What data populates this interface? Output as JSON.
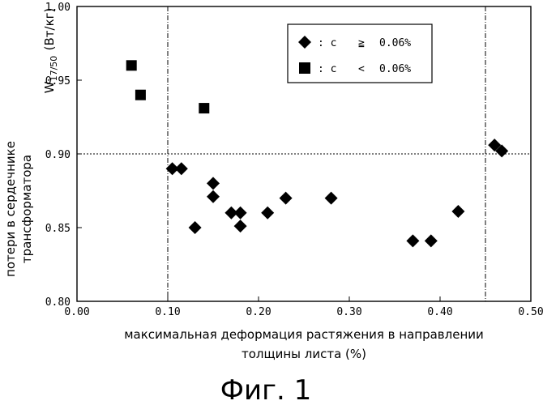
{
  "chart_data": {
    "type": "scatter",
    "xlabel_line1": "максимальная деформация растяжения в направлении",
    "xlabel_line2": "толщины листа (%)",
    "ylabel_line1": "потери в сердечнике",
    "ylabel_line2": "трансформатора",
    "ylabel_symbol": "W",
    "ylabel_subscript": "17/50",
    "ylabel_unit": "(Вт/кг)",
    "xlim": [
      0.0,
      0.5
    ],
    "ylim": [
      0.8,
      1.0
    ],
    "x_ticks": [
      "0.00",
      "0.10",
      "0.20",
      "0.30",
      "0.40",
      "0.50"
    ],
    "y_ticks": [
      "0.80",
      "0.85",
      "0.90",
      "0.95",
      "1.00"
    ],
    "x_tick_values": [
      0.0,
      0.1,
      0.2,
      0.3,
      0.4,
      0.5
    ],
    "y_tick_values": [
      0.8,
      0.85,
      0.9,
      0.95,
      1.0
    ],
    "reference_lines": {
      "vertical": [
        0.1,
        0.45
      ],
      "horizontal": [
        0.9
      ]
    },
    "legend_position": "top-right",
    "series": [
      {
        "name": "c ≧ 0.06%",
        "marker": "diamond",
        "points": [
          [
            0.105,
            0.89
          ],
          [
            0.115,
            0.89
          ],
          [
            0.13,
            0.85
          ],
          [
            0.15,
            0.88
          ],
          [
            0.15,
            0.871
          ],
          [
            0.17,
            0.86
          ],
          [
            0.18,
            0.86
          ],
          [
            0.18,
            0.851
          ],
          [
            0.21,
            0.86
          ],
          [
            0.23,
            0.87
          ],
          [
            0.28,
            0.87
          ],
          [
            0.37,
            0.841
          ],
          [
            0.39,
            0.841
          ],
          [
            0.42,
            0.861
          ],
          [
            0.46,
            0.906
          ],
          [
            0.468,
            0.902
          ]
        ]
      },
      {
        "name": "c < 0.06%",
        "marker": "square",
        "points": [
          [
            0.06,
            0.96
          ],
          [
            0.07,
            0.94
          ],
          [
            0.14,
            0.931
          ]
        ]
      }
    ],
    "legend": [
      {
        "symbol": "◆",
        "prefix": ": c",
        "op": "≧",
        "value": "0.06%"
      },
      {
        "symbol": "■",
        "prefix": ": c",
        "op": "<",
        "value": "0.06%"
      }
    ]
  },
  "caption": "Фиг. 1"
}
